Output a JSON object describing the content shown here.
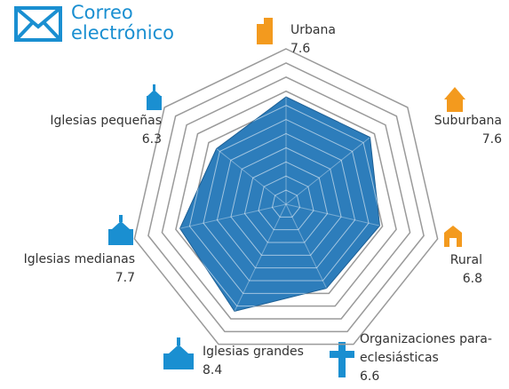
{
  "chart_data": {
    "type": "radar",
    "title": "Correo electrónico",
    "categories": [
      "Urbana",
      "Suburbana",
      "Rural",
      "Organizaciones para-eclesiásticas",
      "Iglesias grandes",
      "Iglesias medianas",
      "Iglesias pequeñas"
    ],
    "values": [
      7.6,
      7.6,
      6.8,
      6.6,
      8.4,
      7.7,
      6.3
    ],
    "color": "#2d7dbb",
    "rlim": [
      0,
      11
    ],
    "rticks": [
      1,
      2,
      3,
      4,
      5,
      6,
      7,
      8,
      9,
      10,
      11
    ]
  }
}
